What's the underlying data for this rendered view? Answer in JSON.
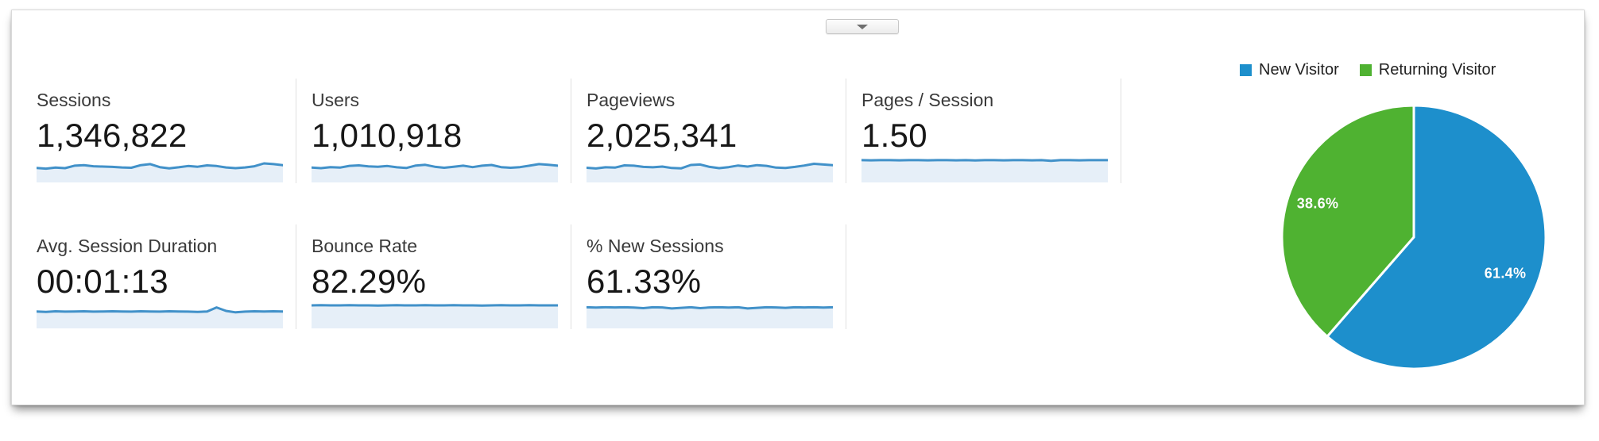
{
  "colors": {
    "new_visitor_blue": "#1d8fcc",
    "returning_visitor_green": "#4fb231",
    "spark_stroke": "#4191c9",
    "spark_fill": "#e6eff8",
    "separator": "#e0e0e0",
    "label_text": "#3a3a3a",
    "value_text": "#171717"
  },
  "collapse_button": {
    "icon": "triangle-down"
  },
  "metrics": [
    {
      "label": "Sessions",
      "value": "1,346,822"
    },
    {
      "label": "Users",
      "value": "1,010,918"
    },
    {
      "label": "Pageviews",
      "value": "2,025,341"
    },
    {
      "label": "Pages / Session",
      "value": "1.50"
    },
    {
      "label": "Avg. Session Duration",
      "value": "00:01:13"
    },
    {
      "label": "Bounce Rate",
      "value": "82.29%"
    },
    {
      "label": "% New Sessions",
      "value": "61.33%"
    }
  ],
  "visitor_chart": {
    "legend": [
      {
        "label": "New Visitor",
        "color": "#1d8fcc"
      },
      {
        "label": "Returning Visitor",
        "color": "#4fb231"
      }
    ],
    "slices": [
      {
        "label": "New Visitor",
        "pct": 61.4,
        "display": "61.4%",
        "color": "#1d8fcc"
      },
      {
        "label": "Returning Visitor",
        "pct": 38.6,
        "display": "38.6%",
        "color": "#4fb231"
      }
    ]
  },
  "chart_data": [
    {
      "type": "pie",
      "title": "New vs Returning Visitor share",
      "labels": [
        "New Visitor",
        "Returning Visitor"
      ],
      "values": [
        61.4,
        38.6
      ],
      "unit": "%",
      "data_labels": [
        "61.4%",
        "38.6%"
      ],
      "colors": [
        "#1d8fcc",
        "#4fb231"
      ],
      "legend_position": "top-right",
      "start_angle": "12 o'clock, clockwise, New Visitor first"
    },
    {
      "type": "line",
      "subtype": "sparklines",
      "note": "Unlabeled trend sparklines under each summary metric; no axes or tick values are visible, values are normalized 0-1 estimates of line height.",
      "series": [
        {
          "name": "Sessions",
          "values": [
            0.42,
            0.38,
            0.44,
            0.41,
            0.55,
            0.58,
            0.52,
            0.5,
            0.48,
            0.45,
            0.43,
            0.58,
            0.64,
            0.47,
            0.4,
            0.46,
            0.53,
            0.49,
            0.57,
            0.53,
            0.45,
            0.41,
            0.45,
            0.52,
            0.68,
            0.64,
            0.58
          ]
        },
        {
          "name": "Users",
          "values": [
            0.44,
            0.41,
            0.47,
            0.44,
            0.54,
            0.57,
            0.51,
            0.49,
            0.53,
            0.46,
            0.42,
            0.56,
            0.6,
            0.49,
            0.43,
            0.49,
            0.55,
            0.47,
            0.55,
            0.59,
            0.47,
            0.43,
            0.47,
            0.55,
            0.64,
            0.6,
            0.55
          ]
        },
        {
          "name": "Pageviews",
          "values": [
            0.43,
            0.39,
            0.46,
            0.44,
            0.57,
            0.55,
            0.48,
            0.46,
            0.5,
            0.42,
            0.4,
            0.59,
            0.62,
            0.48,
            0.41,
            0.47,
            0.56,
            0.5,
            0.58,
            0.54,
            0.44,
            0.42,
            0.48,
            0.56,
            0.66,
            0.62,
            0.58
          ]
        },
        {
          "name": "Pages / Session",
          "values": [
            0.87,
            0.86,
            0.87,
            0.87,
            0.86,
            0.87,
            0.87,
            0.86,
            0.87,
            0.87,
            0.86,
            0.87,
            0.85,
            0.87,
            0.87,
            0.86,
            0.87,
            0.87,
            0.86,
            0.87,
            0.83,
            0.87,
            0.87,
            0.86,
            0.87,
            0.87,
            0.87
          ]
        },
        {
          "name": "Avg. Session Duration",
          "values": [
            0.56,
            0.53,
            0.57,
            0.55,
            0.56,
            0.57,
            0.55,
            0.56,
            0.57,
            0.56,
            0.55,
            0.57,
            0.56,
            0.55,
            0.57,
            0.56,
            0.55,
            0.53,
            0.56,
            0.79,
            0.59,
            0.51,
            0.55,
            0.57,
            0.56,
            0.57,
            0.56
          ]
        },
        {
          "name": "Bounce Rate",
          "values": [
            0.91,
            0.92,
            0.91,
            0.91,
            0.92,
            0.91,
            0.91,
            0.9,
            0.91,
            0.92,
            0.91,
            0.91,
            0.92,
            0.91,
            0.91,
            0.92,
            0.91,
            0.91,
            0.9,
            0.91,
            0.92,
            0.91,
            0.91,
            0.92,
            0.91,
            0.91,
            0.91
          ]
        },
        {
          "name": "% New Sessions",
          "values": [
            0.8,
            0.78,
            0.8,
            0.79,
            0.8,
            0.78,
            0.75,
            0.8,
            0.79,
            0.73,
            0.77,
            0.8,
            0.75,
            0.79,
            0.8,
            0.78,
            0.8,
            0.73,
            0.77,
            0.8,
            0.79,
            0.77,
            0.8,
            0.79,
            0.8,
            0.78,
            0.8
          ]
        }
      ]
    }
  ]
}
